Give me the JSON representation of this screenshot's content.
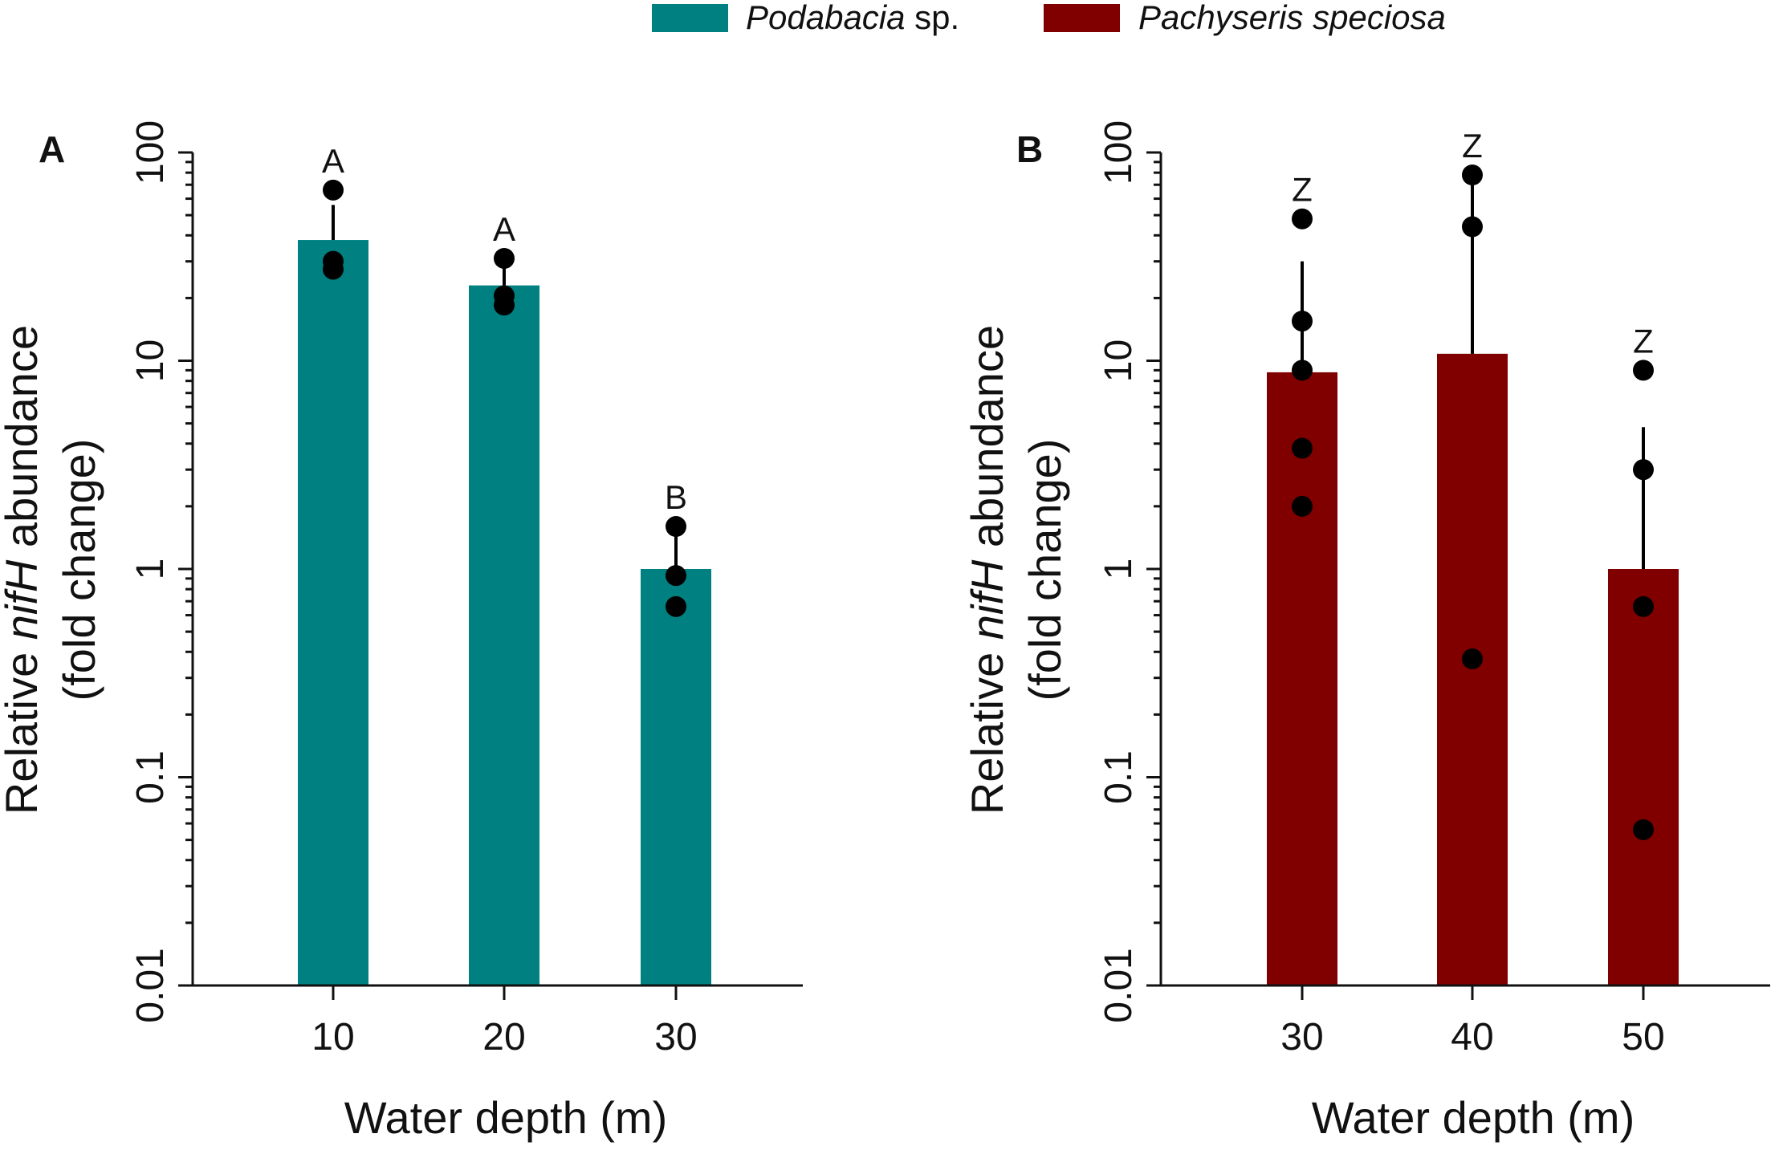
{
  "legend": {
    "items": [
      {
        "name_italic": "Podabacia",
        "name_plain": " sp.",
        "color": "#008080"
      },
      {
        "name_italic": "Pachyseris speciosa",
        "name_plain": "",
        "color": "#800000"
      }
    ]
  },
  "chart_data": [
    {
      "type": "bar",
      "panel": "A",
      "series_name": "Podabacia sp.",
      "color": "#008080",
      "categories": [
        "10",
        "20",
        "30"
      ],
      "values": [
        38,
        23,
        1.0
      ],
      "error_upper": [
        56,
        31,
        1.5
      ],
      "points": [
        [
          66,
          30,
          27.5
        ],
        [
          31,
          20.5,
          18.5
        ],
        [
          1.6,
          0.93,
          0.66
        ]
      ],
      "significance": [
        "A",
        "A",
        "B"
      ],
      "xlabel": "Water depth (m)",
      "ylabel_prefix": "Relative ",
      "ylabel_italic": "nifH",
      "ylabel_suffix": " abundance",
      "ylabel_line2": "(fold change)",
      "yscale": "log",
      "ylim": [
        0.01,
        100
      ],
      "yticks": [
        0.01,
        0.1,
        1,
        10,
        100
      ],
      "ytick_labels": [
        "0.01",
        "0.1",
        "1",
        "10",
        "100"
      ]
    },
    {
      "type": "bar",
      "panel": "B",
      "series_name": "Pachyseris speciosa",
      "color": "#800000",
      "categories": [
        "30",
        "40",
        "50"
      ],
      "values": [
        8.8,
        10.8,
        1.0
      ],
      "error_upper": [
        30,
        78,
        4.8
      ],
      "points": [
        [
          48,
          15.5,
          9,
          3.8,
          2.0
        ],
        [
          78,
          44,
          0.37
        ],
        [
          9,
          3.0,
          0.66,
          0.056
        ]
      ],
      "significance": [
        "Z",
        "Z",
        "Z"
      ],
      "xlabel": "Water depth (m)",
      "ylabel_prefix": "Relative ",
      "ylabel_italic": "nifH",
      "ylabel_suffix": " abundance",
      "ylabel_line2": "(fold change)",
      "yscale": "log",
      "ylim": [
        0.01,
        100
      ],
      "yticks": [
        0.01,
        0.1,
        1,
        10,
        100
      ],
      "ytick_labels": [
        "0.01",
        "0.1",
        "1",
        "10",
        "100"
      ]
    }
  ]
}
